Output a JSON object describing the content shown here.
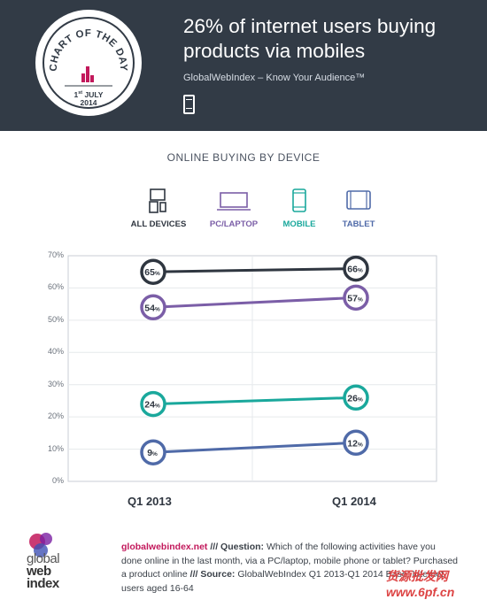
{
  "header": {
    "badge_text": "CHART OF THE DAY",
    "badge_day": "1",
    "badge_day_suffix": "st",
    "badge_month": "JULY",
    "badge_year": "2014",
    "title": "26% of internet users buying products via mobiles",
    "subtitle": "GlobalWebIndex – Know Your Audience™",
    "icon": "phone-icon"
  },
  "legend": [
    {
      "label": "ALL DEVICES",
      "color": "#2f3640",
      "icon": "all-devices-icon"
    },
    {
      "label": "PC/LAPTOP",
      "color": "#7b5ea7",
      "icon": "laptop-icon"
    },
    {
      "label": "MOBILE",
      "color": "#1aa89c",
      "icon": "mobile-icon"
    },
    {
      "label": "TABLET",
      "color": "#4f6aa8",
      "icon": "tablet-icon"
    }
  ],
  "chart_data": {
    "type": "line",
    "title": "ONLINE BUYING BY DEVICE",
    "categories": [
      "Q1 2013",
      "Q1 2014"
    ],
    "ylim": [
      0,
      70
    ],
    "yticks": [
      "0%",
      "10%",
      "20%",
      "30%",
      "40%",
      "50%",
      "60%",
      "70%"
    ],
    "grid": true,
    "legend_position": "top",
    "series": [
      {
        "name": "ALL DEVICES",
        "values": [
          65,
          66
        ],
        "color": "#2f3640"
      },
      {
        "name": "PC/LAPTOP",
        "values": [
          54,
          57
        ],
        "color": "#7b5ea7"
      },
      {
        "name": "MOBILE",
        "values": [
          24,
          26
        ],
        "color": "#1aa89c"
      },
      {
        "name": "TABLET",
        "values": [
          9,
          12
        ],
        "color": "#4f6aa8"
      }
    ],
    "value_suffix": "%"
  },
  "footer": {
    "logo_line1": "global",
    "logo_line2": "web",
    "logo_line3": "index",
    "site": "globalwebindex.net",
    "sep": " /// ",
    "question_label": "Question:",
    "question": " Which of the following activities have you done online in the last month, via a PC/laptop, mobile phone or tablet? Purchased a product online",
    "source_label": "Source:",
    "source": " GlobalWebIndex Q1 2013-Q1 2014 Base: Internet users aged 16-64"
  },
  "watermark": "货源批发网 www.6pf.cn"
}
